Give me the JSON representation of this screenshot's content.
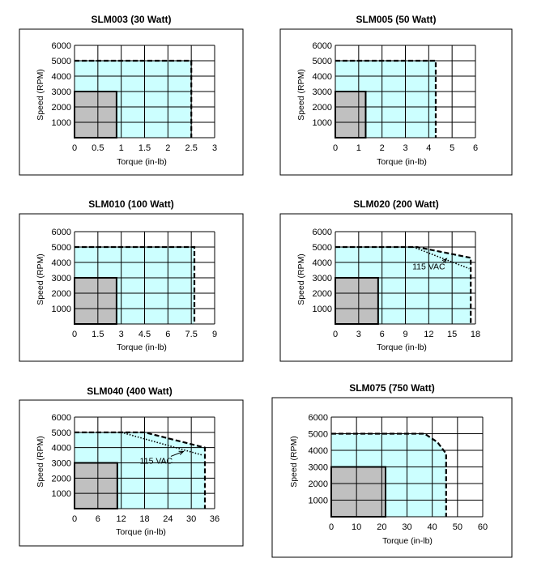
{
  "chart_data": [
    {
      "type": "area",
      "title": "SLM003 (30 Watt)",
      "xlabel": "Torque (in-lb)",
      "ylabel": "Speed (RPM)",
      "xlim": [
        0,
        3
      ],
      "ylim": [
        0,
        6000
      ],
      "x_ticks": [
        "0",
        "0.5",
        "1",
        "1.5",
        "2",
        "2.5",
        "3"
      ],
      "y_ticks": [
        "1000",
        "2000",
        "3000",
        "4000",
        "5000",
        "6000"
      ],
      "grid": true,
      "fill_colors": {
        "intermittent": "#ccffff",
        "continuous": "#c0c0c0"
      },
      "continuous_zone": {
        "torque": 0.9,
        "speed": 3000
      },
      "intermittent_boundary": [
        [
          0,
          5000
        ],
        [
          2.5,
          5000
        ],
        [
          2.5,
          0
        ]
      ],
      "annotations": []
    },
    {
      "type": "area",
      "title": "SLM005 (50 Watt)",
      "xlabel": "Torque (in-lb)",
      "ylabel": "Speed (RPM)",
      "xlim": [
        0,
        6
      ],
      "ylim": [
        0,
        6000
      ],
      "x_ticks": [
        "0",
        "1",
        "2",
        "3",
        "4",
        "5",
        "6"
      ],
      "y_ticks": [
        "1000",
        "2000",
        "3000",
        "4000",
        "5000",
        "6000"
      ],
      "grid": true,
      "fill_colors": {
        "intermittent": "#ccffff",
        "continuous": "#c0c0c0"
      },
      "continuous_zone": {
        "torque": 1.3,
        "speed": 3000
      },
      "intermittent_boundary": [
        [
          0,
          5000
        ],
        [
          4.3,
          5000
        ],
        [
          4.3,
          0
        ]
      ],
      "annotations": []
    },
    {
      "type": "area",
      "title": "SLM010 (100 Watt)",
      "xlabel": "Torque (in-lb)",
      "ylabel": "Speed (RPM)",
      "xlim": [
        0,
        9
      ],
      "ylim": [
        0,
        6000
      ],
      "x_ticks": [
        "0",
        "1.5",
        "3",
        "4.5",
        "6",
        "7.5",
        "9"
      ],
      "y_ticks": [
        "1000",
        "2000",
        "3000",
        "4000",
        "5000",
        "6000"
      ],
      "grid": true,
      "fill_colors": {
        "intermittent": "#ccffff",
        "continuous": "#c0c0c0"
      },
      "continuous_zone": {
        "torque": 2.7,
        "speed": 3000
      },
      "intermittent_boundary": [
        [
          0,
          5000
        ],
        [
          7.7,
          5000
        ],
        [
          7.7,
          0
        ]
      ],
      "annotations": []
    },
    {
      "type": "area",
      "title": "SLM020 (200 Watt)",
      "xlabel": "Torque (in-lb)",
      "ylabel": "Speed (RPM)",
      "xlim": [
        0,
        18
      ],
      "ylim": [
        0,
        6000
      ],
      "x_ticks": [
        "0",
        "3",
        "6",
        "9",
        "12",
        "15",
        "18"
      ],
      "y_ticks": [
        "1000",
        "2000",
        "3000",
        "4000",
        "5000",
        "6000"
      ],
      "grid": true,
      "fill_colors": {
        "intermittent": "#ccffff",
        "continuous": "#c0c0c0"
      },
      "continuous_zone": {
        "torque": 5.5,
        "speed": 3000
      },
      "intermittent_boundary": [
        [
          0,
          5000
        ],
        [
          10.5,
          5000
        ],
        [
          17.4,
          4300
        ],
        [
          17.4,
          0
        ]
      ],
      "vac115_boundary": [
        [
          10,
          5000
        ],
        [
          17.2,
          3600
        ]
      ],
      "annotations": [
        {
          "text": "115 VAC",
          "at": [
            12,
            3550
          ],
          "arrow_to": [
            14.3,
            4250
          ]
        }
      ]
    },
    {
      "type": "area",
      "title": "SLM040 (400 Watt)",
      "xlabel": "Torque (in-lb)",
      "ylabel": "Speed (RPM)",
      "xlim": [
        0,
        36
      ],
      "ylim": [
        0,
        6000
      ],
      "x_ticks": [
        "0",
        "6",
        "12",
        "18",
        "24",
        "30",
        "36"
      ],
      "y_ticks": [
        "1000",
        "2000",
        "3000",
        "4000",
        "5000",
        "6000"
      ],
      "grid": true,
      "fill_colors": {
        "intermittent": "#ccffff",
        "continuous": "#c0c0c0"
      },
      "continuous_zone": {
        "torque": 11,
        "speed": 3000
      },
      "intermittent_boundary": [
        [
          0,
          5000
        ],
        [
          18,
          5000
        ],
        [
          33.5,
          4000
        ],
        [
          33.5,
          0
        ]
      ],
      "vac115_boundary": [
        [
          12,
          5000
        ],
        [
          33,
          3500
        ]
      ],
      "annotations": [
        {
          "text": "115 VAC",
          "at": [
            21,
            2950
          ],
          "arrow_to": [
            28,
            3750
          ]
        }
      ]
    },
    {
      "type": "area",
      "title": "SLM075 (750 Watt)",
      "xlabel": "Torque (in-lb)",
      "ylabel": "Speed (RPM)",
      "xlim": [
        0,
        60
      ],
      "ylim": [
        0,
        6000
      ],
      "x_ticks": [
        "0",
        "10",
        "20",
        "30",
        "40",
        "50",
        "60"
      ],
      "y_ticks": [
        "1000",
        "2000",
        "3000",
        "4000",
        "5000",
        "6000"
      ],
      "grid": true,
      "fill_colors": {
        "intermittent": "#ccffff",
        "continuous": "#c0c0c0"
      },
      "continuous_zone": {
        "torque": 21.5,
        "speed": 3000
      },
      "intermittent_boundary": [
        [
          0,
          5000
        ],
        [
          37,
          5000
        ],
        [
          42,
          4500
        ],
        [
          45.5,
          3800
        ],
        [
          45.5,
          0
        ]
      ],
      "annotations": []
    }
  ]
}
